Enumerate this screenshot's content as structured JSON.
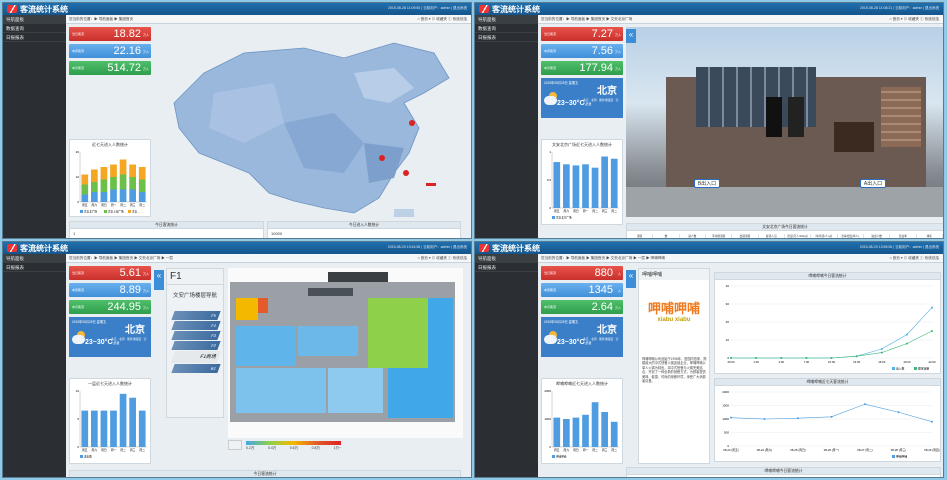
{
  "app_title": "客流统计系统",
  "p1": {
    "info": "2015-08-28 11:09:50 | 当前用户：admin | 退出系统",
    "sidebar": [
      "导航面板",
      "数据查询",
      "日报报表"
    ],
    "crumb": "您当前的位置：▶ 导航面板 ▶ 集团首页",
    "tools": "⌂ 首页 ▾   ⊙ 收藏夹   ⓘ 系统总结",
    "stats": [
      {
        "label": "当日客流",
        "value": "18.82",
        "unit": "万人"
      },
      {
        "label": "本周客流",
        "value": "22.16",
        "unit": "万人"
      },
      {
        "label": "本月客流",
        "value": "514.72",
        "unit": "万人"
      }
    ],
    "chart_title": "近七天进入人数统计",
    "legend": [
      "文安北广场",
      "文安上海广场",
      "文安..."
    ],
    "bottom_left": "今日客流统计",
    "bottom_right": "今日进入人数统计",
    "axis_left": "1",
    "axis_right": "10000"
  },
  "p2": {
    "info": "2015-08-28 11:08:21 | 当前用户：admin | 退出系统",
    "sidebar": [
      "导航面板",
      "数据查询",
      "日报报表"
    ],
    "crumb": "您当前的位置：▶ 导航面板 ▶ 集团首页 ▶ 文安北京广场",
    "tools": "⌂ 首页 ▾   ⊙ 收藏夹   ⓘ 系统总结",
    "stats": [
      {
        "label": "当日客流",
        "value": "7.27",
        "unit": "万人"
      },
      {
        "label": "本周客流",
        "value": "7.56",
        "unit": "万人"
      },
      {
        "label": "本月客流",
        "value": "177.94",
        "unit": "万人"
      }
    ],
    "weather": {
      "date": "2015年08月28日 星期五",
      "city": "北京",
      "temp": "23~30°C",
      "details": "多云 · 北风 · 紫外线强度 · 空气质量"
    },
    "chart_title": "文安北京广场近七天进入人数统计",
    "legend": "文安北京广场",
    "entry_b": "B出入口",
    "entry_a": "A出入口",
    "bottom_title": "文安北京广场今日客流统计",
    "table_headers": [
      "通道",
      "数",
      "进人数",
      "平均通道值",
      "出通道值",
      "客流人员",
      "密度(万人/100㎡)",
      "时间(月/人/㎡)",
      "竞争密度(年人)",
      "进出人数",
      "营业率",
      "排名"
    ]
  },
  "p3": {
    "info": "2015-08-29 13:44:56 | 当前用户：admin | 退出系统",
    "sidebar": [
      "导航面板",
      "日报报表"
    ],
    "crumb": "您当前的位置：▶ 导航面板 ▶ 集团首页 ▶ 文安北京广场 ▶ 一层",
    "tools": "⌂ 首页 ▾   ⊙ 收藏夹   ⓘ 系统总结",
    "stats": [
      {
        "label": "当日客流",
        "value": "5.61",
        "unit": "万人"
      },
      {
        "label": "本周客流",
        "value": "8.89",
        "unit": "万人"
      },
      {
        "label": "本月客流",
        "value": "244.95",
        "unit": "万人"
      }
    ],
    "weather": {
      "date": "2015年08月28日 星期五",
      "city": "北京",
      "temp": "23~30°C",
      "details": "多云 · 北风 · 紫外线强度 · 空气质量"
    },
    "chart_title": "一层近七天进入人数统计",
    "legend": "进出数",
    "floor": "F1",
    "nav_title": "文安广场楼层导航",
    "floors": [
      "F5",
      "F4",
      "F3",
      "F2",
      "F1商场",
      "B1"
    ],
    "scale": [
      "0.2万",
      "0.4万",
      "0.6万",
      "0.8万",
      "1万~"
    ],
    "bottom_title": "今日客流统计"
  },
  "p4": {
    "info": "2015-08-29 13:55:06 | 当前用户：admin | 退出系统",
    "sidebar": [
      "导航面板",
      "日报报表"
    ],
    "crumb": "您当前的位置：▶ 导航面板 ▶ 集团首页 ▶ 文安北京广场 ▶ 一层 ▶ 呷哺呷哺",
    "tools": "⌂ 首页 ▾   ⊙ 收藏夹   ⓘ 系统总结",
    "stats": [
      {
        "label": "当日客流",
        "value": "880",
        "unit": "人"
      },
      {
        "label": "本周客流",
        "value": "1345",
        "unit": "人"
      },
      {
        "label": "本月客流",
        "value": "2.64",
        "unit": "万人"
      }
    ],
    "weather": {
      "date": "2015年08月28日 星期五",
      "city": "北京",
      "temp": "23~30°C",
      "details": "多云 · 北风 · 紫外线强度 · 空气质量"
    },
    "shop": "呷哺呷哺",
    "brand": "呷哺呷哺",
    "brand_sub": "xiabu xiabu",
    "desc": "呷哺呷哺公司创始于1998年，是国内首家、规模最大的中式快餐火锅连锁企业，呷哺呷哺以单人火锅为特色，将中式快餐与火锅完美结合，开创了一种全新的就餐方式，为顾客提供美味、健康、时尚的用餐环境，深受广大消费者喜爱。",
    "chart_title": "呷哺呷哺近七天进入人数统计",
    "legend": "呷哺呷哺",
    "today_title": "呷哺呷哺今日客流统计",
    "week_title": "呷哺呷哺近七天客流统计",
    "bottom_title": "呷哺呷哺今日客流统计"
  },
  "chart_data": [
    {
      "type": "bar",
      "title": "近七天进入人数统计",
      "categories": [
        "周五",
        "周六",
        "周日",
        "周一",
        "周二",
        "周三",
        "周二"
      ],
      "series": [
        {
          "name": "文安北广场",
          "values": [
            3,
            4,
            4,
            5,
            5,
            5,
            4
          ]
        },
        {
          "name": "文安上海广场",
          "values": [
            4,
            4,
            5,
            5,
            6,
            5,
            5
          ]
        },
        {
          "name": "文安...",
          "values": [
            4,
            5,
            5,
            5,
            6,
            5,
            5
          ]
        }
      ],
      "ylim": [
        0,
        20
      ]
    },
    {
      "type": "bar",
      "title": "文安北京广场近七天进入人数统计",
      "categories": [
        "周五",
        "周六",
        "周日",
        "周一",
        "周二",
        "周三",
        "周二"
      ],
      "values": [
        0.82,
        0.78,
        0.76,
        0.78,
        0.72,
        0.92,
        0.88
      ],
      "ylim": [
        0,
        1
      ]
    },
    {
      "type": "bar",
      "title": "一层近七天进入人数统计",
      "categories": [
        "周五",
        "周六",
        "周日",
        "周一",
        "周二",
        "周三",
        "周二"
      ],
      "values": [
        6.5,
        6.5,
        6.5,
        6.5,
        9.5,
        8.8,
        6.5
      ],
      "ylim": [
        0,
        10
      ]
    },
    {
      "type": "bar",
      "title": "呷哺呷哺近七天进入人数统计",
      "categories": [
        "周五",
        "周六",
        "周日",
        "周一",
        "周二",
        "周三",
        "周二"
      ],
      "values": [
        1050,
        1000,
        1050,
        1150,
        1600,
        1250,
        900
      ],
      "ylim": [
        0,
        2000
      ]
    },
    {
      "type": "line",
      "title": "呷哺呷哺今日客流统计",
      "x": [
        "20:00",
        "1:00",
        "4:00",
        "7:00",
        "10:00",
        "13:00",
        "16:00",
        "19:00",
        "22:00"
      ],
      "series": [
        {
          "name": "出入数",
          "values": [
            0,
            0,
            0,
            0,
            0,
            1,
            5,
            13,
            28
          ]
        },
        {
          "name": "额定容量",
          "values": [
            0,
            0,
            0,
            0,
            0,
            1,
            3,
            8,
            15
          ]
        }
      ],
      "ylim": [
        0,
        40
      ]
    },
    {
      "type": "line",
      "title": "呷哺呷哺近七天客流统计",
      "x": [
        "08-23 (周五)",
        "08-24 (周六)",
        "08-25 (周日)",
        "08-26 (周一)",
        "08-27 (周二)",
        "08-28 (周三)",
        "08-29 (周四)"
      ],
      "series": [
        {
          "name": "呷哺呷哺",
          "values": [
            1050,
            1000,
            1030,
            1080,
            1550,
            1250,
            900
          ]
        }
      ],
      "ylim": [
        0,
        2000
      ]
    }
  ]
}
